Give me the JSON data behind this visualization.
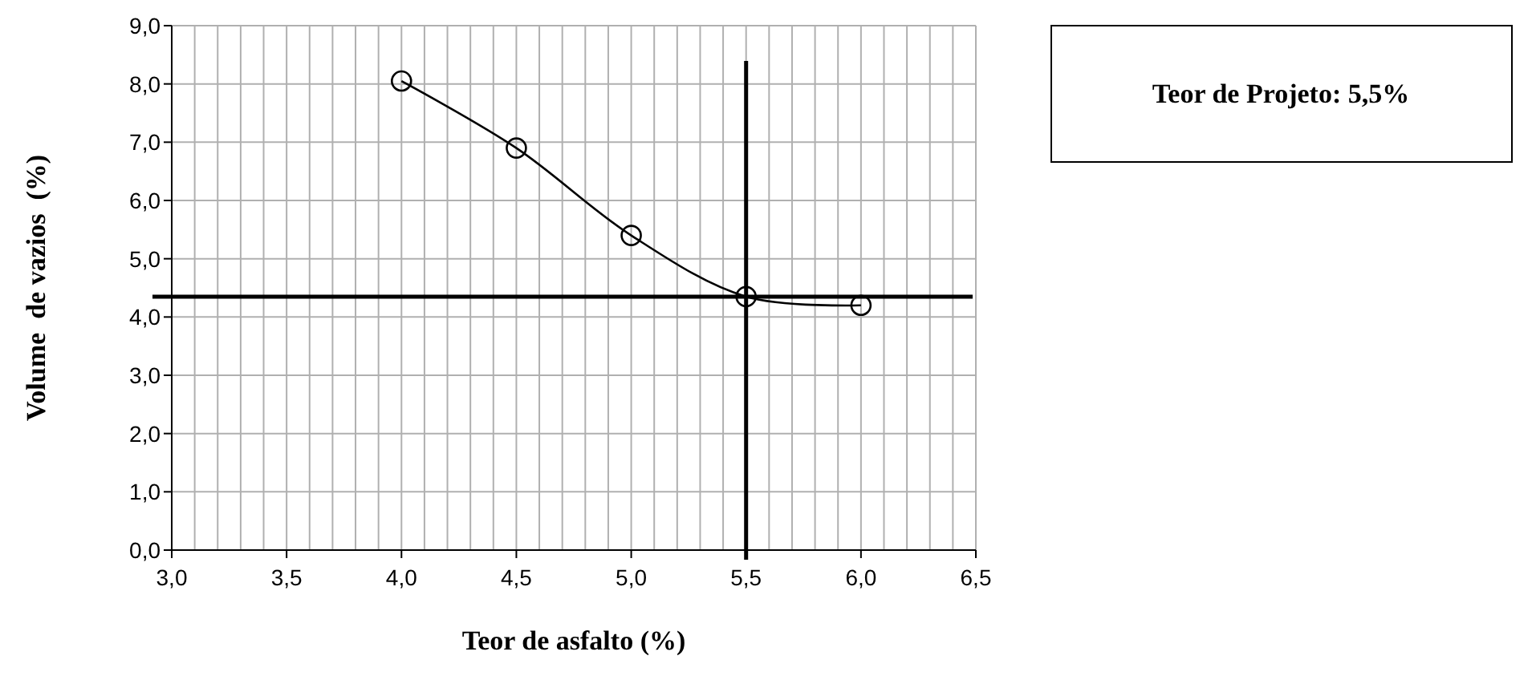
{
  "chart_data": {
    "type": "line",
    "xlabel": "Teor de asfalto (%)",
    "ylabel": "Volume  de vazios  (%)",
    "annotations": [
      "Teor de Projeto: 5,5%"
    ],
    "x": [
      4.0,
      4.5,
      5.0,
      5.5,
      6.0
    ],
    "series": [
      {
        "color": "#000000",
        "values": [
          8.05,
          6.9,
          5.4,
          4.35,
          4.2
        ]
      }
    ],
    "marker": "circle",
    "line_style": "solid",
    "grid": true,
    "xlim": [
      3.0,
      6.5
    ],
    "xticks": [
      {
        "value": 3.0,
        "label": "3,0"
      },
      {
        "value": 3.1,
        "label": null
      },
      {
        "value": 3.2,
        "label": null
      },
      {
        "value": 3.3,
        "label": null
      },
      {
        "value": 3.4,
        "label": null
      },
      {
        "value": 3.5,
        "label": "3,5"
      },
      {
        "value": 3.6,
        "label": null
      },
      {
        "value": 3.7,
        "label": null
      },
      {
        "value": 3.8,
        "label": null
      },
      {
        "value": 3.9,
        "label": null
      },
      {
        "value": 4.0,
        "label": "4,0"
      },
      {
        "value": 4.1,
        "label": null
      },
      {
        "value": 4.2,
        "label": null
      },
      {
        "value": 4.3,
        "label": null
      },
      {
        "value": 4.4,
        "label": null
      },
      {
        "value": 4.5,
        "label": "4,5"
      },
      {
        "value": 4.6,
        "label": null
      },
      {
        "value": 4.7,
        "label": null
      },
      {
        "value": 4.8,
        "label": null
      },
      {
        "value": 4.9,
        "label": null
      },
      {
        "value": 5.0,
        "label": "5,0"
      },
      {
        "value": 5.1,
        "label": null
      },
      {
        "value": 5.2,
        "label": null
      },
      {
        "value": 5.3,
        "label": null
      },
      {
        "value": 5.4,
        "label": null
      },
      {
        "value": 5.5,
        "label": "5,5"
      },
      {
        "value": 5.6,
        "label": null
      },
      {
        "value": 5.7,
        "label": null
      },
      {
        "value": 5.8,
        "label": null
      },
      {
        "value": 5.9,
        "label": null
      },
      {
        "value": 6.0,
        "label": "6,0"
      },
      {
        "value": 6.1,
        "label": null
      },
      {
        "value": 6.2,
        "label": null
      },
      {
        "value": 6.3,
        "label": null
      },
      {
        "value": 6.4,
        "label": null
      },
      {
        "value": 6.5,
        "label": "6,5"
      }
    ],
    "ylim": [
      0,
      9
    ],
    "yticks": [
      {
        "value": 0,
        "label": "0,0"
      },
      {
        "value": 1,
        "label": "1,0"
      },
      {
        "value": 2,
        "label": "2,0"
      },
      {
        "value": 3,
        "label": "3,0"
      },
      {
        "value": 4,
        "label": "4,0"
      },
      {
        "value": 5,
        "label": "5,0"
      },
      {
        "value": 6,
        "label": "6,0"
      },
      {
        "value": 7,
        "label": "7,0"
      },
      {
        "value": 8,
        "label": "8,0"
      },
      {
        "value": 9,
        "label": "9,0"
      }
    ],
    "ref_lines": [
      {
        "axis": "x",
        "value": 5.5,
        "color": "#000000"
      },
      {
        "axis": "y",
        "value": 4.35,
        "color": "#000000"
      }
    ]
  }
}
